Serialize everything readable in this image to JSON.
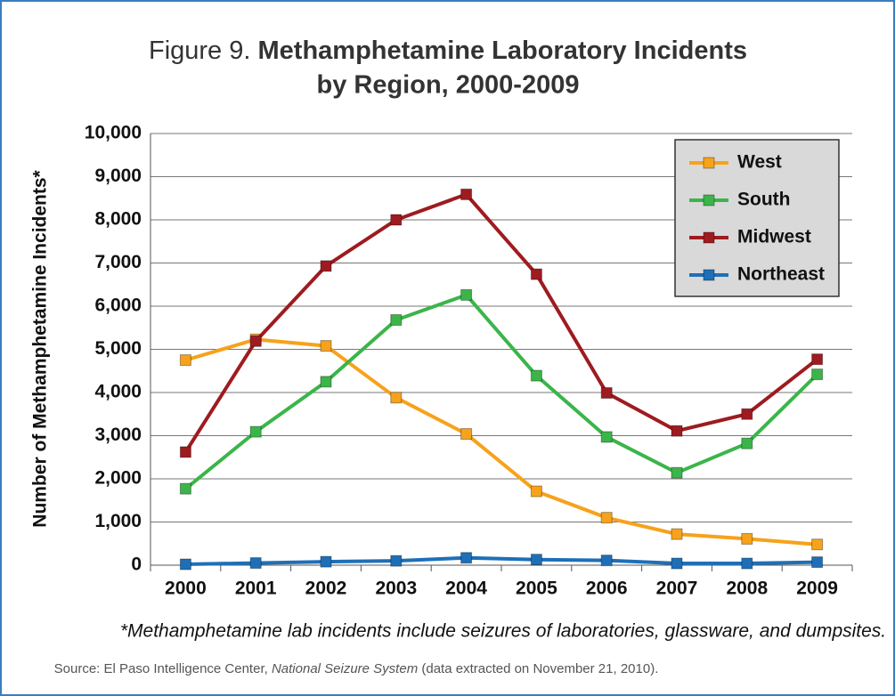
{
  "chart_data": {
    "type": "line",
    "title_label": "Figure 9.",
    "title_lines": [
      "Methamphetamine Laboratory Incidents",
      "by Region, 2000-2009"
    ],
    "y_label": "Number of Methamphetamine Incidents*",
    "categories": [
      "2000",
      "2001",
      "2002",
      "2003",
      "2004",
      "2005",
      "2006",
      "2007",
      "2008",
      "2009"
    ],
    "series": [
      {
        "name": "West",
        "color": "#f7a21b",
        "values": [
          4750,
          5230,
          5080,
          3880,
          3040,
          1710,
          1100,
          720,
          610,
          480
        ]
      },
      {
        "name": "South",
        "color": "#3bb54a",
        "values": [
          1770,
          3090,
          4250,
          5680,
          6260,
          4390,
          2970,
          2140,
          2820,
          4420
        ]
      },
      {
        "name": "Midwest",
        "color": "#9e1b20",
        "values": [
          2620,
          5190,
          6930,
          8000,
          8590,
          6740,
          3990,
          3110,
          3500,
          4770
        ]
      },
      {
        "name": "Northeast",
        "color": "#1e6fb8",
        "values": [
          20,
          50,
          80,
          100,
          170,
          130,
          110,
          40,
          40,
          70
        ]
      }
    ],
    "ylim": [
      0,
      10000
    ],
    "yticks": [
      0,
      {
        "value": 1000,
        "label": "1,000"
      },
      {
        "value": 2000,
        "label": "2,000"
      },
      {
        "value": 3000,
        "label": "3,000"
      },
      {
        "value": 4000,
        "label": "4,000"
      },
      {
        "value": 5000,
        "label": "5,000"
      },
      {
        "value": 6000,
        "label": "6,000"
      },
      {
        "value": 7000,
        "label": "7,000"
      },
      {
        "value": 8000,
        "label": "8,000"
      },
      {
        "value": 9000,
        "label": "9,000"
      },
      {
        "value": 10000,
        "label": "10,000"
      }
    ],
    "grid": true,
    "legend": "upper right",
    "footnote": "*Methamphetamine lab incidents include seizures of laboratories, glassware, and dumpsites.",
    "source": [
      "Source:  El Paso Intelligence Center, ",
      "National Seizure System",
      " (data extracted on November 21, 2010)."
    ]
  }
}
